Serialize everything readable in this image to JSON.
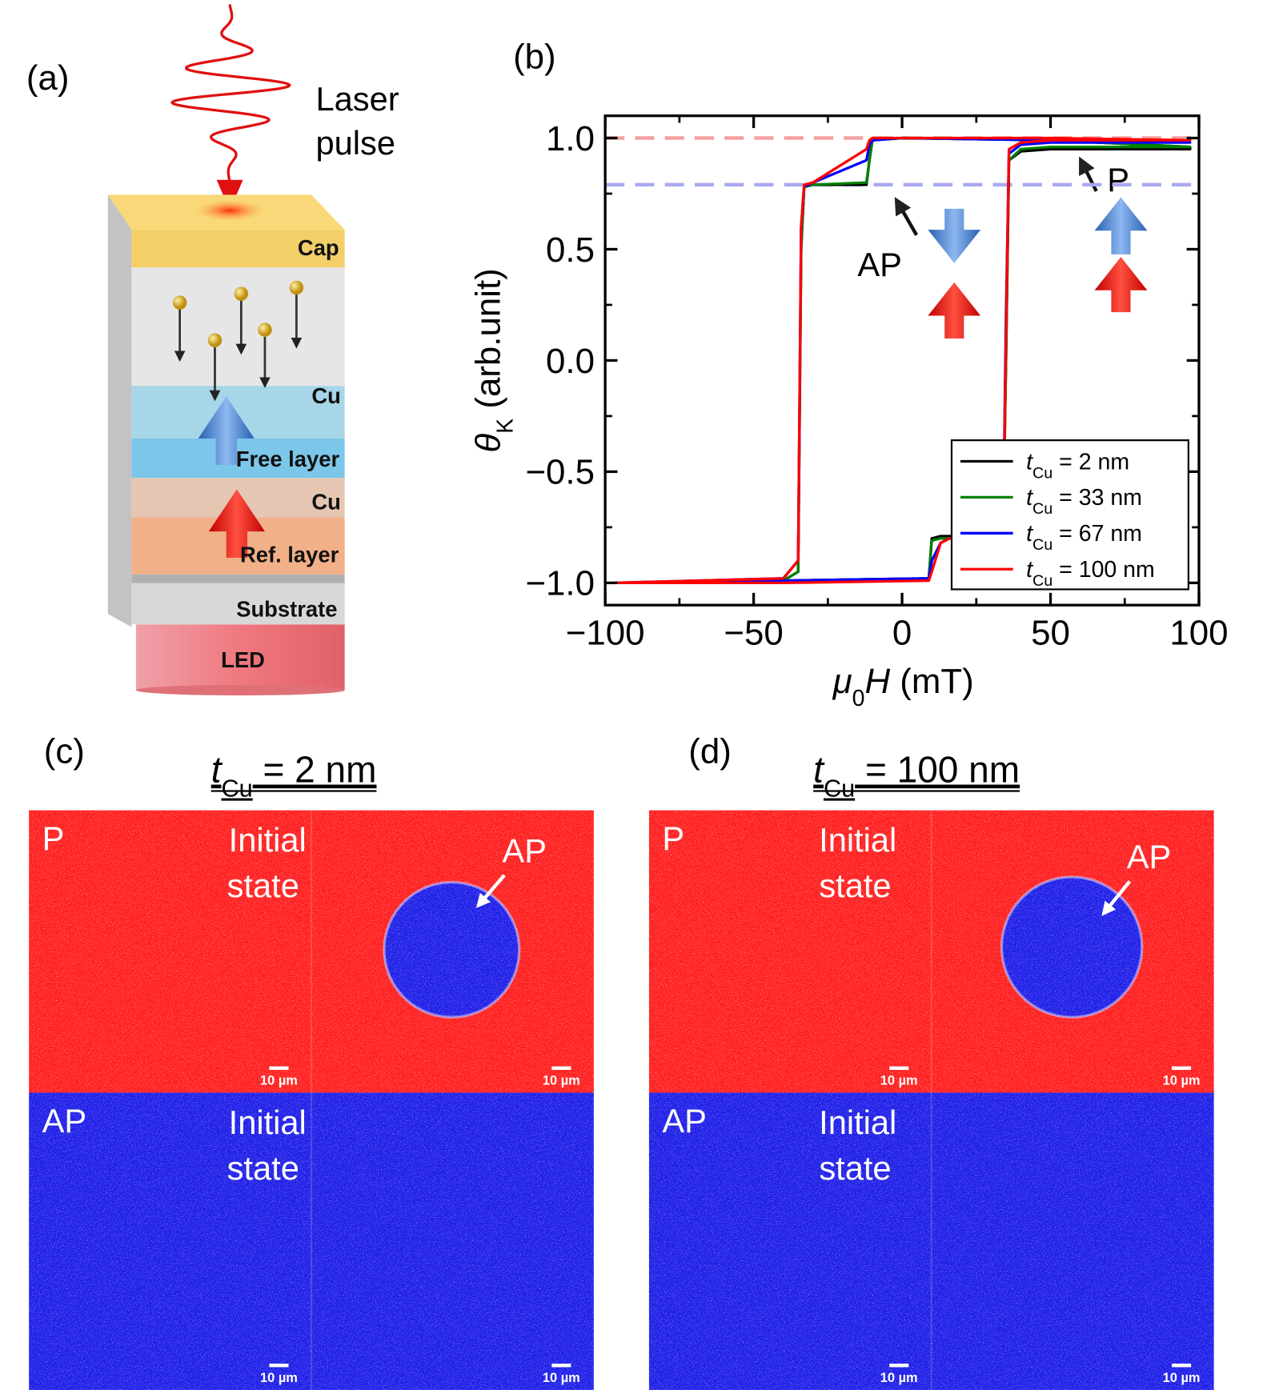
{
  "panel_a": {
    "label": "(a)",
    "laser": [
      "Laser",
      "pulse"
    ],
    "layers": [
      "Cap",
      "Cu",
      "Free layer",
      "Cu",
      "Ref. layer",
      "Substrate",
      "LED"
    ]
  },
  "chart_data": {
    "type": "line",
    "panel_label": "(b)",
    "xlabel": {
      "symbol": "μ",
      "sub": "0",
      "var": "H",
      "text": " (mT)"
    },
    "ylabel": {
      "symbol": "θ",
      "sub": "K",
      "text": " (arb.unit)"
    },
    "x": [
      -97,
      -40,
      9,
      10,
      13,
      16,
      34,
      35,
      36,
      40,
      50,
      97,
      97,
      50,
      0,
      -10,
      -11,
      -12,
      -30,
      -33,
      -34,
      -35,
      -40,
      -97
    ],
    "legend_symbol": "t",
    "legend_sub": "Cu",
    "legend": "lower right",
    "series": [
      {
        "name": " = 2 nm",
        "color": "#000000",
        "values": [
          -1,
          -0.99,
          -0.98,
          -0.8,
          -0.79,
          -0.79,
          -0.79,
          0.0,
          0.9,
          0.94,
          0.95,
          0.95,
          0.96,
          0.99,
          1.0,
          0.99,
          0.9,
          0.79,
          0.79,
          0.78,
          0.5,
          -0.95,
          -0.99,
          -1
        ]
      },
      {
        "name": " = 33 nm",
        "color": "#008000",
        "values": [
          -1,
          -0.99,
          -0.98,
          -0.81,
          -0.8,
          -0.8,
          -0.8,
          0.0,
          0.9,
          0.95,
          0.96,
          0.96,
          0.96,
          0.99,
          1.0,
          0.99,
          0.9,
          0.8,
          0.79,
          0.78,
          0.5,
          -0.95,
          -0.99,
          -1
        ]
      },
      {
        "name": " = 67 nm",
        "color": "#0000ff",
        "values": [
          -1,
          -0.99,
          -0.98,
          -0.9,
          -0.82,
          -0.8,
          -0.8,
          0.2,
          0.93,
          0.97,
          0.98,
          0.98,
          0.98,
          0.99,
          1.0,
          0.99,
          0.97,
          0.9,
          0.8,
          0.78,
          0.6,
          -0.9,
          -0.98,
          -1
        ]
      },
      {
        "name": " = 100 nm",
        "color": "#ff0000",
        "values": [
          -1,
          -1,
          -0.99,
          -0.95,
          -0.82,
          -0.8,
          -0.8,
          0.1,
          0.95,
          0.98,
          0.99,
          0.99,
          0.99,
          1,
          1,
          1,
          0.99,
          0.95,
          0.8,
          0.79,
          0.6,
          -0.9,
          -0.98,
          -1
        ]
      }
    ],
    "reference_lines": [
      {
        "value": 1.0,
        "color": "#f4a0a0"
      },
      {
        "value": 0.79,
        "color": "#a8a8f0"
      }
    ],
    "xlim": [
      -100,
      100
    ],
    "ylim": [
      -1.1,
      1.1
    ],
    "xticks": [
      {
        "value": -100,
        "label": "−100"
      },
      {
        "value": -50,
        "label": "−50"
      },
      0,
      50,
      100
    ],
    "yticks": [
      {
        "value": -1.0,
        "label": "−1.0"
      },
      {
        "value": -0.5,
        "label": "−0.5"
      },
      {
        "value": 0.0,
        "label": "0.0"
      },
      {
        "value": 0.5,
        "label": "0.5"
      },
      {
        "value": 1.0,
        "label": "1.0"
      }
    ],
    "xminorticks": [
      -75,
      -25,
      25,
      75
    ],
    "yminorticks": [
      -0.75,
      -0.25,
      0.25,
      0.75
    ],
    "annotations": [
      "AP",
      "P"
    ]
  },
  "panels": [
    {
      "label": "(c)",
      "title": {
        "symbol": "t",
        "sub": "Cu",
        "text": " = 2 nm"
      },
      "images": [
        {
          "state": "P",
          "text": [
            "Initial",
            "state"
          ],
          "annotation": "AP",
          "scale_bars": [
            "10 µm",
            "10 µm"
          ]
        },
        {
          "state": "AP",
          "text": [
            "Initial",
            "state"
          ],
          "scale_bars": [
            "10 µm",
            "10 µm"
          ]
        }
      ]
    },
    {
      "label": "(d)",
      "title": {
        "symbol": "t",
        "sub": "Cu",
        "text": " = 100 nm"
      },
      "images": [
        {
          "state": "P",
          "text": [
            "Initial",
            "state"
          ],
          "annotation": "AP",
          "scale_bars": [
            "10 µm",
            "10 µm"
          ]
        },
        {
          "state": "AP",
          "text": [
            "Initial",
            "state"
          ],
          "scale_bars": [
            "10 µm",
            "10 µm"
          ]
        }
      ]
    }
  ]
}
